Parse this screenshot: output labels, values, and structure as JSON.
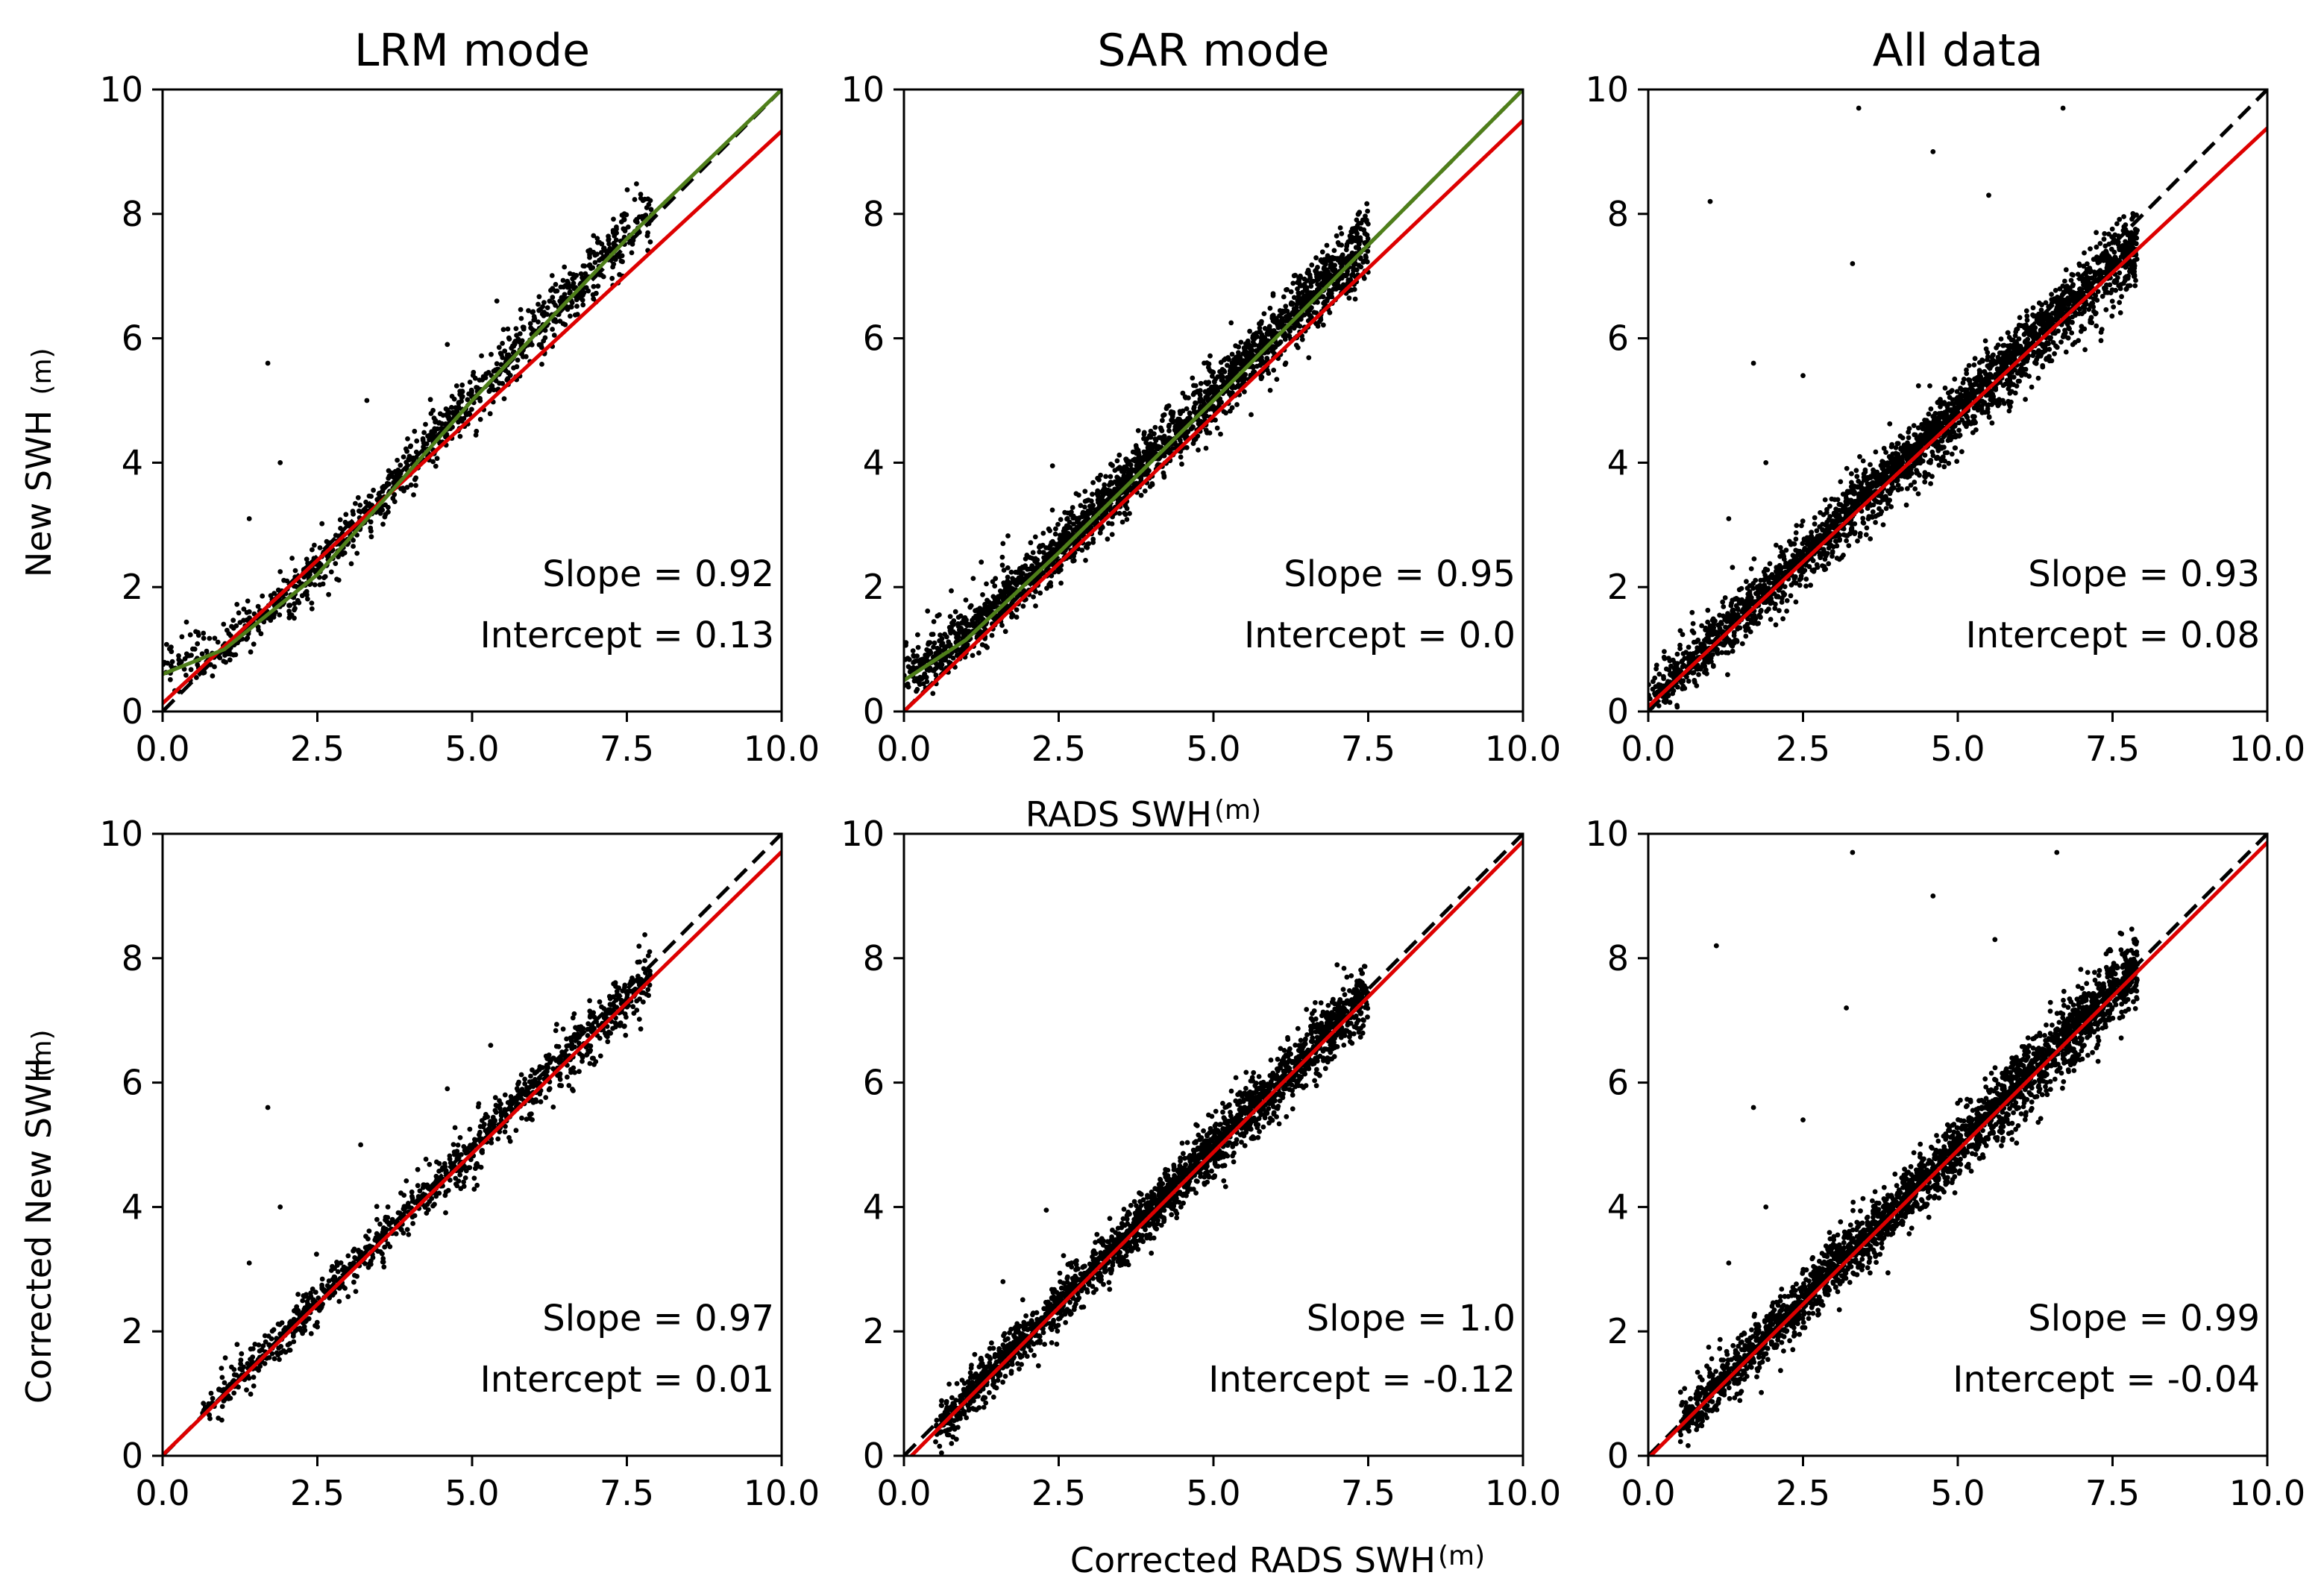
{
  "figure": {
    "ylabel_top": "New SWH",
    "ylabel_bottom": "Corrected New SWH",
    "xlabel_top": "RADS SWH",
    "xlabel_bottom": "Corrected RADS SWH",
    "unit": "(m)"
  },
  "colors": {
    "points": "#000000",
    "identity_line": "#000000",
    "regression_line": "#dd0000",
    "smooth_fit": "#4f7f1a",
    "axes": "#000000"
  },
  "chart_data": [
    {
      "type": "scatter",
      "row": 0,
      "col": 0,
      "title": "LRM mode",
      "xlim": [
        0,
        10
      ],
      "ylim": [
        0,
        10
      ],
      "xticks": [
        "0.0",
        "2.5",
        "5.0",
        "7.5",
        "10.0"
      ],
      "yticks": [
        "0",
        "2",
        "4",
        "6",
        "8",
        "10"
      ],
      "x_range": [
        0.0,
        7.9
      ],
      "spread": 0.22,
      "n_points": 1000,
      "upward_bias": 0.28,
      "outliers": [
        [
          1.7,
          5.6
        ],
        [
          1.9,
          4.0
        ],
        [
          3.3,
          5.0
        ],
        [
          1.4,
          3.1
        ],
        [
          5.4,
          6.6
        ],
        [
          4.6,
          5.9
        ]
      ],
      "regression": {
        "slope": 0.92,
        "intercept": 0.13
      },
      "smooth_fit": [
        [
          0.0,
          0.6
        ],
        [
          1.0,
          1.0
        ],
        [
          2.5,
          2.2
        ],
        [
          5.0,
          5.0
        ],
        [
          7.5,
          7.6
        ],
        [
          10.0,
          10.0
        ]
      ],
      "annotation": {
        "slope_text": "Slope = 0.92",
        "intercept_text": "Intercept = 0.13"
      }
    },
    {
      "type": "scatter",
      "row": 0,
      "col": 1,
      "title": "SAR mode",
      "xlim": [
        0,
        10
      ],
      "ylim": [
        0,
        10
      ],
      "xticks": [
        "0.0",
        "2.5",
        "5.0",
        "7.5",
        "10.0"
      ],
      "yticks": [
        "0",
        "2",
        "4",
        "6",
        "8",
        "10"
      ],
      "x_range": [
        0.0,
        7.5
      ],
      "spread": 0.24,
      "n_points": 2200,
      "upward_bias": 0.35,
      "outliers": [
        [
          2.4,
          3.95
        ],
        [
          1.6,
          2.7
        ]
      ],
      "regression": {
        "slope": 0.95,
        "intercept": 0.0
      },
      "smooth_fit": [
        [
          0.0,
          0.5
        ],
        [
          1.0,
          1.15
        ],
        [
          2.5,
          2.55
        ],
        [
          5.0,
          5.0
        ],
        [
          7.5,
          7.5
        ],
        [
          10.0,
          10.0
        ]
      ],
      "annotation": {
        "slope_text": "Slope = 0.95",
        "intercept_text": "Intercept = 0.0"
      }
    },
    {
      "type": "scatter",
      "row": 0,
      "col": 2,
      "title": "All data",
      "xlim": [
        0,
        10
      ],
      "ylim": [
        0,
        10
      ],
      "xticks": [
        "0.0",
        "2.5",
        "5.0",
        "7.5",
        "10.0"
      ],
      "yticks": [
        "0",
        "2",
        "4",
        "6",
        "8",
        "10"
      ],
      "x_range": [
        0.0,
        7.9
      ],
      "spread": 0.26,
      "n_points": 2600,
      "upward_bias": 0.35,
      "outliers": [
        [
          1.0,
          8.2
        ],
        [
          3.4,
          9.7
        ],
        [
          4.6,
          9.0
        ],
        [
          5.5,
          8.3
        ],
        [
          3.3,
          7.2
        ],
        [
          6.7,
          9.7
        ],
        [
          1.7,
          5.6
        ],
        [
          2.5,
          5.4
        ],
        [
          1.9,
          4.0
        ],
        [
          1.3,
          3.1
        ]
      ],
      "regression": {
        "slope": 0.93,
        "intercept": 0.08
      },
      "annotation": {
        "slope_text": "Slope = 0.93",
        "intercept_text": "Intercept = 0.08"
      }
    },
    {
      "type": "scatter",
      "row": 1,
      "col": 0,
      "title": "",
      "xlim": [
        0,
        10
      ],
      "ylim": [
        0,
        10
      ],
      "xticks": [
        "0.0",
        "2.5",
        "5.0",
        "7.5",
        "10.0"
      ],
      "yticks": [
        "0",
        "2",
        "4",
        "6",
        "8",
        "10"
      ],
      "x_range": [
        0.6,
        7.9
      ],
      "spread": 0.2,
      "n_points": 1000,
      "upward_bias": 0.22,
      "outliers": [
        [
          1.7,
          5.6
        ],
        [
          1.9,
          4.0
        ],
        [
          3.2,
          5.0
        ],
        [
          1.4,
          3.1
        ],
        [
          5.3,
          6.6
        ],
        [
          4.6,
          5.9
        ]
      ],
      "regression": {
        "slope": 0.97,
        "intercept": 0.01
      },
      "annotation": {
        "slope_text": "Slope = 0.97",
        "intercept_text": "Intercept = 0.01"
      }
    },
    {
      "type": "scatter",
      "row": 1,
      "col": 1,
      "title": "",
      "xlim": [
        0,
        10
      ],
      "ylim": [
        0,
        10
      ],
      "xticks": [
        "0.0",
        "2.5",
        "5.0",
        "7.5",
        "10.0"
      ],
      "yticks": [
        "0",
        "2",
        "4",
        "6",
        "8",
        "10"
      ],
      "x_range": [
        0.5,
        7.5
      ],
      "spread": 0.22,
      "n_points": 2200,
      "upward_bias": 0.28,
      "outliers": [
        [
          2.3,
          3.95
        ],
        [
          1.6,
          2.8
        ]
      ],
      "regression": {
        "slope": 1.0,
        "intercept": -0.12
      },
      "annotation": {
        "slope_text": "Slope = 1.0",
        "intercept_text": "Intercept = -0.12"
      }
    },
    {
      "type": "scatter",
      "row": 1,
      "col": 2,
      "title": "",
      "xlim": [
        0,
        10
      ],
      "ylim": [
        0,
        10
      ],
      "xticks": [
        "0.0",
        "2.5",
        "5.0",
        "7.5",
        "10.0"
      ],
      "yticks": [
        "0",
        "2",
        "4",
        "6",
        "8",
        "10"
      ],
      "x_range": [
        0.5,
        7.9
      ],
      "spread": 0.25,
      "n_points": 2600,
      "upward_bias": 0.3,
      "outliers": [
        [
          1.1,
          8.2
        ],
        [
          3.3,
          9.7
        ],
        [
          4.6,
          9.0
        ],
        [
          5.6,
          8.3
        ],
        [
          3.2,
          7.2
        ],
        [
          6.6,
          9.7
        ],
        [
          1.7,
          5.6
        ],
        [
          2.5,
          5.4
        ],
        [
          1.9,
          4.0
        ],
        [
          1.3,
          3.1
        ]
      ],
      "regression": {
        "slope": 0.99,
        "intercept": -0.04
      },
      "annotation": {
        "slope_text": "Slope = 0.99",
        "intercept_text": "Intercept = -0.04"
      }
    }
  ]
}
